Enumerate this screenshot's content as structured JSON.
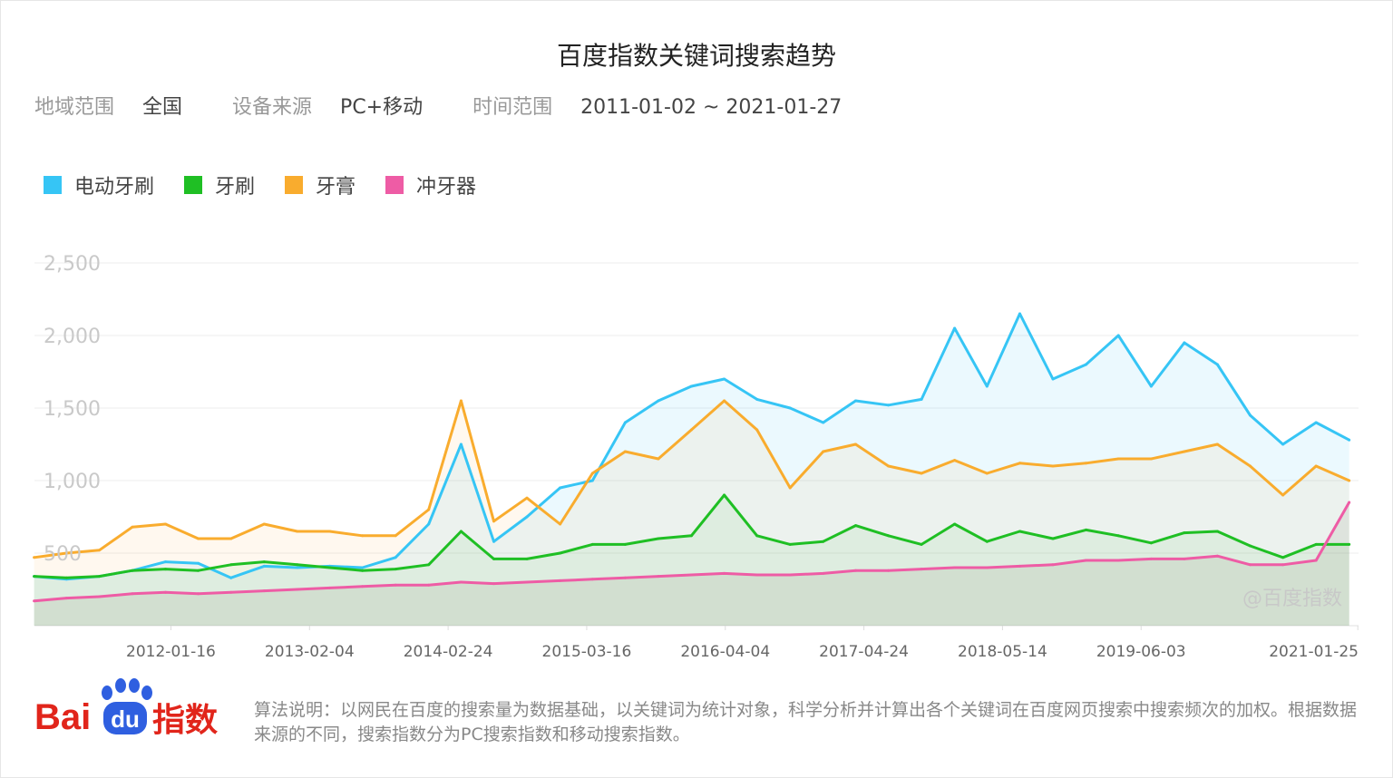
{
  "title": "百度指数关键词搜索趋势",
  "meta": {
    "region_label": "地域范围",
    "region_value": "全国",
    "device_label": "设备来源",
    "device_value": "PC+移动",
    "time_label": "时间范围",
    "time_value": "2011-01-02 ~ 2021-01-27"
  },
  "colors": {
    "电动牙刷": "#36c5f5",
    "牙刷": "#1fbf24",
    "牙膏": "#f9ac2e",
    "冲牙器": "#ee5ca5"
  },
  "watermark": "@百度指数",
  "logo": {
    "bai": "Bai",
    "du": "du",
    "suffix": "指数"
  },
  "footer": "算法说明：以网民在百度的搜索量为数据基础，以关键词为统计对象，科学分析并计算出各个关键词在百度网页搜索中搜索频次的加权。根据数据来源的不同，搜索指数分为PC搜索指数和移动搜索指数。",
  "chart_data": {
    "type": "area",
    "title": "",
    "ylim": [
      0,
      2500
    ],
    "yticks": [
      500,
      1000,
      1500,
      2000,
      2500
    ],
    "ytick_labels": [
      "500",
      "1,000",
      "1,500",
      "2,000",
      "2,500"
    ],
    "xticks": [
      {
        "date": "2012-01-16",
        "label": "2012-01-16"
      },
      {
        "date": "2013-02-04",
        "label": "2013-02-04"
      },
      {
        "date": "2014-02-24",
        "label": "2014-02-24"
      },
      {
        "date": "2015-03-16",
        "label": "2015-03-16"
      },
      {
        "date": "2016-04-04",
        "label": "2016-04-04"
      },
      {
        "date": "2017-04-24",
        "label": "2017-04-24"
      },
      {
        "date": "2018-05-14",
        "label": "2018-05-14"
      },
      {
        "date": "2019-06-03",
        "label": "2019-06-03"
      },
      {
        "date": "2021-01-25",
        "label": "2021-01-25"
      }
    ],
    "x": [
      "2011-01",
      "2011-04",
      "2011-07",
      "2011-10",
      "2012-01",
      "2012-04",
      "2012-07",
      "2012-10",
      "2013-01",
      "2013-04",
      "2013-07",
      "2013-10",
      "2014-01",
      "2014-04",
      "2014-07",
      "2014-10",
      "2015-01",
      "2015-04",
      "2015-07",
      "2015-10",
      "2016-01",
      "2016-04",
      "2016-07",
      "2016-10",
      "2017-01",
      "2017-04",
      "2017-07",
      "2017-10",
      "2018-01",
      "2018-04",
      "2018-07",
      "2018-10",
      "2019-01",
      "2019-04",
      "2019-07",
      "2019-10",
      "2020-01",
      "2020-04",
      "2020-07",
      "2020-10",
      "2021-01"
    ],
    "series": [
      {
        "name": "电动牙刷",
        "values": [
          340,
          320,
          340,
          380,
          440,
          430,
          330,
          410,
          400,
          410,
          400,
          470,
          700,
          1250,
          580,
          750,
          950,
          1000,
          1400,
          1550,
          1650,
          1700,
          1560,
          1500,
          1400,
          1550,
          1520,
          1560,
          2050,
          1650,
          2150,
          1700,
          1800,
          2000,
          1650,
          1950,
          1800,
          1450,
          1250,
          1400,
          1280
        ]
      },
      {
        "name": "牙刷",
        "values": [
          340,
          330,
          340,
          380,
          390,
          380,
          420,
          440,
          420,
          400,
          380,
          390,
          420,
          650,
          460,
          460,
          500,
          560,
          560,
          600,
          620,
          900,
          620,
          560,
          580,
          690,
          620,
          560,
          700,
          580,
          650,
          600,
          660,
          620,
          570,
          640,
          650,
          550,
          470,
          560,
          560
        ]
      },
      {
        "name": "牙膏",
        "values": [
          470,
          500,
          520,
          680,
          700,
          600,
          600,
          700,
          650,
          650,
          620,
          620,
          800,
          1550,
          720,
          880,
          700,
          1050,
          1200,
          1150,
          1350,
          1550,
          1350,
          950,
          1200,
          1250,
          1100,
          1050,
          1140,
          1050,
          1120,
          1100,
          1120,
          1150,
          1150,
          1200,
          1250,
          1100,
          900,
          1100,
          1000
        ]
      },
      {
        "name": "冲牙器",
        "values": [
          170,
          190,
          200,
          220,
          230,
          220,
          230,
          240,
          250,
          260,
          270,
          280,
          280,
          300,
          290,
          300,
          310,
          320,
          330,
          340,
          350,
          360,
          350,
          350,
          360,
          380,
          380,
          390,
          400,
          400,
          410,
          420,
          450,
          450,
          460,
          460,
          480,
          420,
          420,
          450,
          850
        ]
      }
    ]
  }
}
